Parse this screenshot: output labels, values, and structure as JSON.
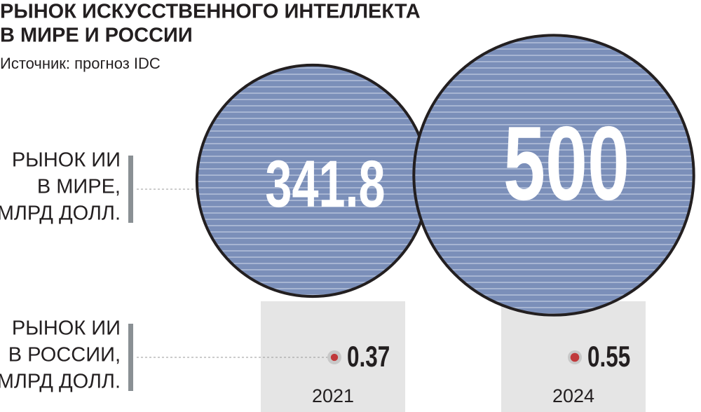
{
  "chart_data": {
    "type": "bubble",
    "title": [
      "РЫНОК ИСКУССТВЕННОГО ИНТЕЛЛЕКТА",
      "В МИРЕ И РОССИИ"
    ],
    "source": "Источник: прогноз IDC",
    "categories": [
      "2021",
      "2024"
    ],
    "series": [
      {
        "name": [
          "РЫНОК ИИ",
          "В МИРЕ,",
          "МЛРД ДОЛЛ."
        ],
        "color": "#7b8fb9",
        "values": [
          341.8,
          500
        ]
      },
      {
        "name": [
          "РЫНОК ИИ",
          "В РОССИИ,",
          "МЛРД ДОЛЛ."
        ],
        "color": "#c0393b",
        "values": [
          0.37,
          0.55
        ]
      }
    ]
  }
}
